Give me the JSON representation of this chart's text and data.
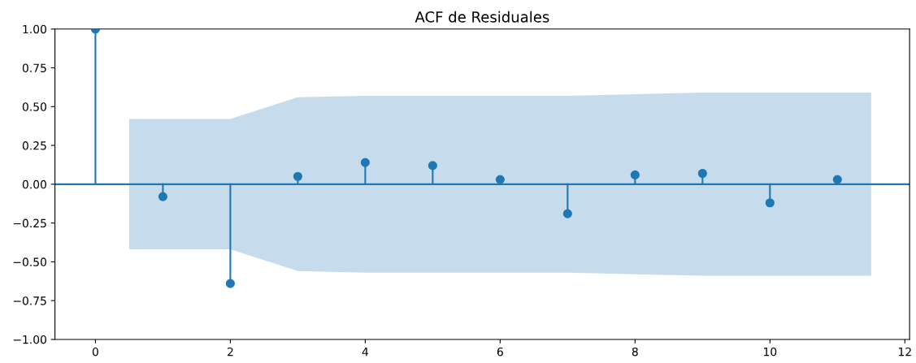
{
  "chart_data": {
    "type": "lollipop",
    "title": "ACF de Residuales",
    "series": [
      {
        "type": "area",
        "color": "#c6dbec",
        "x": [
          0.5,
          2,
          3,
          4,
          5,
          6,
          7,
          8,
          9,
          10,
          11.5
        ],
        "values": [
          null,
          null,
          null,
          null,
          null,
          null,
          null,
          null,
          null,
          null,
          null
        ],
        "lower": [
          -0.42,
          -0.42,
          -0.56,
          -0.57,
          -0.57,
          -0.57,
          -0.57,
          -0.58,
          -0.59,
          -0.59,
          -0.59
        ],
        "upper": [
          0.42,
          0.42,
          0.56,
          0.57,
          0.57,
          0.57,
          0.57,
          0.58,
          0.59,
          0.59,
          0.59
        ]
      },
      {
        "color": "#1f77b4",
        "x": [
          0,
          1,
          2,
          3,
          4,
          5,
          6,
          7,
          8,
          9,
          10,
          11
        ],
        "values": [
          1.0,
          -0.08,
          -0.64,
          0.05,
          0.14,
          0.12,
          0.03,
          -0.19,
          0.06,
          0.07,
          -0.12,
          0.03
        ]
      }
    ],
    "ref_lines": [
      {
        "axis": "y",
        "value": 0,
        "color": "#1f77b4"
      }
    ],
    "marker": "circle",
    "xlim": [
      -0.6,
      12.07
    ],
    "xticks": [
      0,
      2,
      4,
      6,
      8,
      10,
      12
    ],
    "ylim": [
      -1.0,
      1.0
    ],
    "yticks": [
      {
        "value": -1.0,
        "label": "−1.00"
      },
      {
        "value": -0.75,
        "label": "−0.75"
      },
      {
        "value": -0.5,
        "label": "−0.50"
      },
      {
        "value": -0.25,
        "label": "−0.25"
      },
      {
        "value": 0.0,
        "label": "0.00"
      },
      {
        "value": 0.25,
        "label": "0.25"
      },
      {
        "value": 0.5,
        "label": "0.50"
      },
      {
        "value": 0.75,
        "label": "0.75"
      },
      {
        "value": 1.0,
        "label": "1.00"
      }
    ],
    "grid": false
  }
}
